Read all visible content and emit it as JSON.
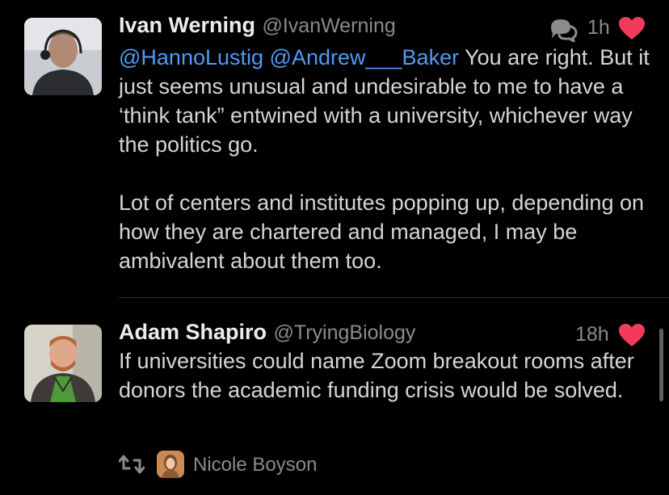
{
  "colors": {
    "background": "#000000",
    "mention": "#4e9cf5",
    "heart": "#f23b5c",
    "secondary_text": "#8b8b8b"
  },
  "tweets": [
    {
      "author_name": "Ivan Werning",
      "author_handle": "@IvanWerning",
      "time": "1h",
      "mention_1": "@HannoLustig",
      "mention_2": "@Andrew___Baker",
      "para1_rest": " You are right. But it just seems unusual and undesirable to me to have a ‘think tank” entwined with a university, whichever way the politics go.",
      "para2": "Lot of centers and institutes popping up, depending on how they are chartered and managed, I may be ambivalent about them too.",
      "icons": [
        "conversation-icon",
        "heart-icon"
      ]
    },
    {
      "author_name": "Adam Shapiro",
      "author_handle": "@TryingBiology",
      "time": "18h",
      "text": "If universities could name Zoom breakout rooms after donors the academic funding crisis would be solved.",
      "retweeted_by": "Nicole Boyson",
      "icons": [
        "retweet-icon",
        "heart-icon"
      ]
    }
  ]
}
